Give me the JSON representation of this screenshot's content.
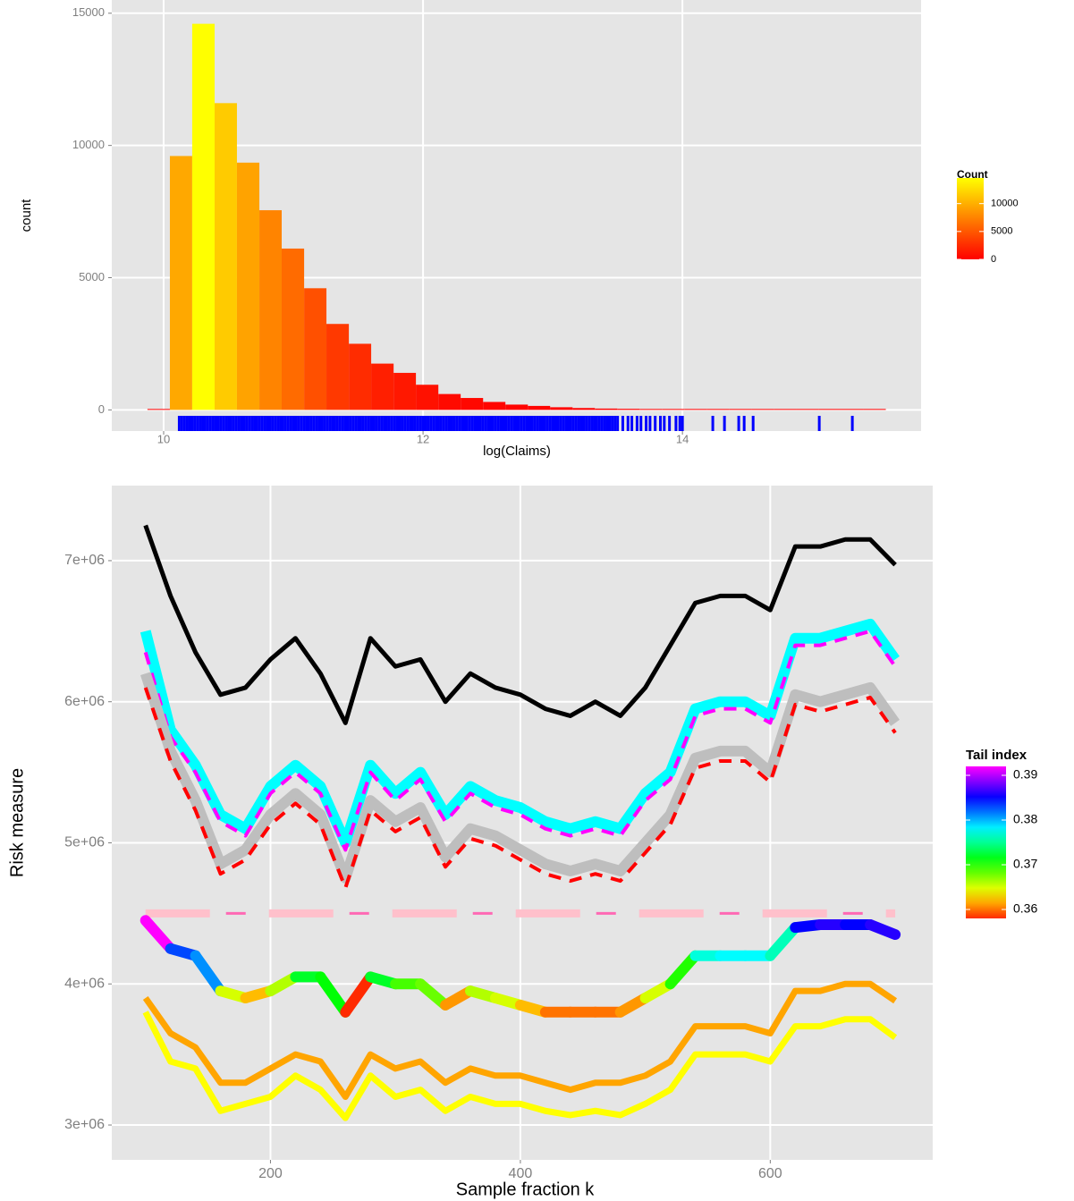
{
  "chart_data": [
    {
      "type": "histogram",
      "xlabel": "log(Claims)",
      "ylabel": "count",
      "bins": [
        9.875,
        10.048,
        10.22,
        10.393,
        10.565,
        10.738,
        10.91,
        11.083,
        11.255,
        11.428,
        11.6,
        11.773,
        11.945,
        12.118,
        12.29,
        12.463,
        12.635,
        12.808,
        12.98,
        13.153,
        13.325,
        13.498,
        13.67,
        13.843,
        14.015,
        14.188,
        14.36,
        14.533,
        14.705,
        14.878,
        15.05,
        15.223,
        15.395,
        15.568
      ],
      "values": [
        0,
        9600,
        14600,
        11600,
        9350,
        7550,
        6100,
        4600,
        3250,
        2500,
        1750,
        1400,
        950,
        600,
        450,
        300,
        200,
        150,
        100,
        70,
        50,
        40,
        30,
        20,
        15,
        10,
        8,
        5,
        3,
        2,
        2,
        1,
        1
      ],
      "xlim": [
        9.6,
        15.84
      ],
      "ylim": [
        -800,
        15500
      ],
      "xticks": [
        10,
        12,
        14
      ],
      "yticks": [
        0,
        5000,
        10000,
        15000
      ],
      "grid": true,
      "color_low": "#ff0000",
      "color_high": "#ffff00",
      "legend": {
        "title": "Count",
        "ticks": [
          0,
          5000,
          10000
        ]
      },
      "rug": {
        "color": "#0000ff",
        "values": [
          10.12,
          10.14,
          10.16,
          10.18,
          10.2,
          10.22,
          10.24,
          10.26,
          10.28,
          10.3,
          10.32,
          10.34,
          10.36,
          10.38,
          10.4,
          10.42,
          10.44,
          10.46,
          10.48,
          10.5,
          10.52,
          10.54,
          10.56,
          10.58,
          10.6,
          10.62,
          10.64,
          10.66,
          10.68,
          10.7,
          10.72,
          10.74,
          10.76,
          10.78,
          10.8,
          10.82,
          10.84,
          10.86,
          10.88,
          10.9,
          10.92,
          10.94,
          10.96,
          10.98,
          11,
          11.02,
          11.04,
          11.06,
          11.08,
          11.1,
          11.12,
          11.14,
          11.16,
          11.18,
          11.2,
          11.22,
          11.24,
          11.26,
          11.28,
          11.3,
          11.32,
          11.34,
          11.36,
          11.38,
          11.4,
          11.42,
          11.44,
          11.46,
          11.48,
          11.5,
          11.52,
          11.54,
          11.56,
          11.58,
          11.6,
          11.62,
          11.64,
          11.66,
          11.68,
          11.7,
          11.72,
          11.74,
          11.76,
          11.78,
          11.8,
          11.82,
          11.84,
          11.86,
          11.88,
          11.9,
          11.92,
          11.94,
          11.96,
          11.98,
          12,
          12.02,
          12.04,
          12.06,
          12.08,
          12.1,
          12.12,
          12.14,
          12.16,
          12.18,
          12.2,
          12.22,
          12.24,
          12.26,
          12.28,
          12.3,
          12.32,
          12.34,
          12.36,
          12.38,
          12.4,
          12.42,
          12.44,
          12.46,
          12.48,
          12.5,
          12.52,
          12.54,
          12.56,
          12.58,
          12.6,
          12.62,
          12.64,
          12.66,
          12.68,
          12.7,
          12.72,
          12.74,
          12.76,
          12.78,
          12.8,
          12.82,
          12.84,
          12.86,
          12.88,
          12.9,
          12.92,
          12.94,
          12.96,
          12.98,
          13,
          13.02,
          13.04,
          13.06,
          13.08,
          13.1,
          13.12,
          13.14,
          13.16,
          13.18,
          13.2,
          13.22,
          13.24,
          13.26,
          13.28,
          13.3,
          13.32,
          13.34,
          13.36,
          13.38,
          13.4,
          13.42,
          13.44,
          13.46,
          13.48,
          13.5,
          13.54,
          13.58,
          13.61,
          13.65,
          13.68,
          13.72,
          13.75,
          13.79,
          13.83,
          13.86,
          13.9,
          13.95,
          13.98,
          14.0,
          14.234,
          14.324,
          14.434,
          14.476,
          14.545,
          15.055,
          15.31
        ]
      }
    },
    {
      "type": "line",
      "xlabel": "Sample fraction k",
      "ylabel": "Risk measure",
      "x": [
        100,
        120,
        140,
        160,
        180,
        200,
        220,
        240,
        260,
        280,
        300,
        320,
        340,
        360,
        380,
        400,
        420,
        440,
        460,
        480,
        500,
        520,
        540,
        560,
        580,
        600,
        620,
        640,
        660,
        680,
        700
      ],
      "xlim": [
        73,
        730
      ],
      "ylim": [
        2753000,
        7532000
      ],
      "xticks": [
        200,
        400,
        600
      ],
      "yticks": [
        {
          "value": 3000000,
          "label": "3e+06"
        },
        {
          "value": 4000000,
          "label": "4e+06"
        },
        {
          "value": 5000000,
          "label": "5e+06"
        },
        {
          "value": 6000000,
          "label": "6e+06"
        },
        {
          "value": 7000000,
          "label": "7e+06"
        }
      ],
      "grid": true,
      "series": [
        {
          "color": "#000000",
          "linetype": "solid",
          "values": [
            7250000,
            6750000,
            6350000,
            6050000,
            6100000,
            6300000,
            6450000,
            6200000,
            5850000,
            6450000,
            6250000,
            6300000,
            6000000,
            6200000,
            6100000,
            6050000,
            5950000,
            5900000,
            6000000,
            5900000,
            6100000,
            6400000,
            6700000,
            6750000,
            6750000,
            6650000,
            7100000,
            7100000,
            7150000,
            7150000,
            6970000
          ]
        },
        {
          "color": "#00ffff",
          "linetype": "solid",
          "values": [
            6500000,
            5800000,
            5550000,
            5200000,
            5100000,
            5400000,
            5550000,
            5400000,
            5000000,
            5550000,
            5350000,
            5500000,
            5200000,
            5400000,
            5300000,
            5250000,
            5150000,
            5100000,
            5150000,
            5100000,
            5350000,
            5500000,
            5950000,
            6000000,
            6000000,
            5900000,
            6450000,
            6450000,
            6500000,
            6550000,
            6300000
          ]
        },
        {
          "color": "#ff00ff",
          "linetype": "dashed",
          "values": [
            6350000,
            5750000,
            5500000,
            5150000,
            5050000,
            5350000,
            5500000,
            5350000,
            4950000,
            5500000,
            5300000,
            5450000,
            5150000,
            5350000,
            5250000,
            5200000,
            5100000,
            5050000,
            5100000,
            5050000,
            5300000,
            5450000,
            5900000,
            5950000,
            5950000,
            5850000,
            6400000,
            6400000,
            6450000,
            6500000,
            6250000
          ]
        },
        {
          "color": "#bebebe",
          "linetype": "solid",
          "values": [
            6200000,
            5650000,
            5300000,
            4850000,
            4950000,
            5200000,
            5350000,
            5200000,
            4750000,
            5300000,
            5150000,
            5250000,
            4900000,
            5100000,
            5050000,
            4950000,
            4850000,
            4800000,
            4850000,
            4800000,
            5000000,
            5200000,
            5600000,
            5650000,
            5650000,
            5500000,
            6050000,
            6000000,
            6050000,
            6100000,
            5850000
          ]
        },
        {
          "color": "#ff0000",
          "linetype": "dashed",
          "values": [
            6100000,
            5580000,
            5230000,
            4780000,
            4880000,
            5130000,
            5280000,
            5130000,
            4680000,
            5230000,
            5080000,
            5180000,
            4830000,
            5030000,
            4980000,
            4880000,
            4780000,
            4730000,
            4780000,
            4730000,
            4930000,
            5130000,
            5530000,
            5580000,
            5580000,
            5430000,
            5980000,
            5930000,
            5980000,
            6030000,
            5780000
          ]
        },
        {
          "color": "#ffc0cb",
          "linetype": "longdash",
          "values": [
            4500000,
            4500000,
            4500000,
            4500000,
            4500000,
            4500000,
            4500000,
            4500000,
            4500000,
            4500000,
            4500000,
            4500000,
            4500000,
            4500000,
            4500000,
            4500000,
            4500000,
            4500000,
            4500000,
            4500000,
            4500000,
            4500000,
            4500000,
            4500000,
            4500000,
            4500000,
            4500000,
            4500000,
            4500000,
            4500000,
            4500000
          ]
        },
        {
          "color": "#ff69b4",
          "linetype": "dashed",
          "values": [
            4500000,
            4500000,
            4500000,
            4500000,
            4500000,
            4500000,
            4500000,
            4500000,
            4500000,
            4500000,
            4500000,
            4500000,
            4500000,
            4500000,
            4500000,
            4500000,
            4500000,
            4500000,
            4500000,
            4500000,
            4500000,
            4500000,
            4500000,
            4500000,
            4500000,
            4500000,
            4500000,
            4500000,
            4500000,
            4500000,
            4500000
          ]
        },
        {
          "color_by": "tail_index",
          "linetype": "solid",
          "tail_index": [
            0.392,
            0.383,
            0.381,
            0.365,
            0.362,
            0.366,
            0.372,
            0.371,
            0.358,
            0.372,
            0.369,
            0.368,
            0.361,
            0.366,
            0.365,
            0.362,
            0.36,
            0.36,
            0.36,
            0.361,
            0.365,
            0.37,
            0.377,
            0.378,
            0.378,
            0.376,
            0.385,
            0.386,
            0.385,
            0.386,
            0.384
          ],
          "values": [
            4450000,
            4250000,
            4200000,
            3950000,
            3900000,
            3950000,
            4050000,
            4050000,
            3800000,
            4050000,
            4000000,
            4000000,
            3850000,
            3950000,
            3900000,
            3850000,
            3800000,
            3800000,
            3800000,
            3800000,
            3900000,
            4000000,
            4200000,
            4200000,
            4200000,
            4200000,
            4400000,
            4420000,
            4420000,
            4420000,
            4350000
          ]
        },
        {
          "color": "#ffa500",
          "linetype": "solid",
          "values": [
            3900000,
            3650000,
            3550000,
            3300000,
            3300000,
            3400000,
            3500000,
            3450000,
            3200000,
            3500000,
            3400000,
            3450000,
            3300000,
            3400000,
            3350000,
            3350000,
            3300000,
            3250000,
            3300000,
            3300000,
            3350000,
            3450000,
            3700000,
            3700000,
            3700000,
            3650000,
            3950000,
            3950000,
            4000000,
            4000000,
            3880000
          ]
        },
        {
          "color": "#ffff00",
          "linetype": "solid",
          "values": [
            3800000,
            3450000,
            3400000,
            3100000,
            3150000,
            3200000,
            3350000,
            3250000,
            3050000,
            3350000,
            3200000,
            3250000,
            3100000,
            3200000,
            3150000,
            3150000,
            3100000,
            3070000,
            3100000,
            3070000,
            3150000,
            3250000,
            3500000,
            3500000,
            3500000,
            3450000,
            3700000,
            3700000,
            3750000,
            3750000,
            3620000
          ]
        }
      ],
      "legend": {
        "title": "Tail index",
        "ticks": [
          0.36,
          0.37,
          0.38,
          0.39
        ]
      }
    }
  ]
}
